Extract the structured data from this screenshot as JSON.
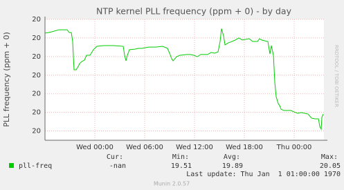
{
  "chart_data": {
    "type": "line",
    "title": "NTP kernel PLL frequency (ppm + 0) - by day",
    "y_label": "PLL frequency (ppm + 0)",
    "side_text": "RRDTOOL / TOBI OETIKER",
    "xlim": [
      0,
      33.58
    ],
    "xticks": [
      {
        "value": 6,
        "label": "Wed 00:00"
      },
      {
        "value": 12,
        "label": "Wed 06:00"
      },
      {
        "value": 18,
        "label": "Wed 12:00"
      },
      {
        "value": 24,
        "label": "Wed 18:00"
      },
      {
        "value": 30,
        "label": "Thu 00:00"
      }
    ],
    "ylim": [
      19.45,
      20.1
    ],
    "yticks": [
      {
        "value": 19.5,
        "label": "20"
      },
      {
        "value": 19.6,
        "label": "20"
      },
      {
        "value": 19.7,
        "label": "20"
      },
      {
        "value": 19.8,
        "label": "20"
      },
      {
        "value": 19.9,
        "label": "20"
      },
      {
        "value": 20.0,
        "label": "20"
      },
      {
        "value": 20.1,
        "label": "20"
      }
    ],
    "grid": true,
    "x": [
      0,
      0.42,
      0.83,
      1.67,
      2.67,
      2.92,
      3.17,
      3.33,
      3.5,
      3.75,
      4,
      4.17,
      4.42,
      4.75,
      5,
      5.42,
      5.83,
      6.25,
      7.08,
      8.33,
      9.42,
      9.58,
      9.75,
      9.92,
      10.17,
      10.83,
      11.25,
      11.67,
      12.5,
      13.33,
      14.17,
      14.75,
      15,
      15.25,
      15.42,
      15.83,
      16.25,
      17.08,
      17.5,
      17.92,
      18.33,
      18.75,
      19.58,
      20,
      20.42,
      20.83,
      21.08,
      21.25,
      21.5,
      21.67,
      22.08,
      22.5,
      22.92,
      23.33,
      23.75,
      24.58,
      25,
      25.58,
      25.83,
      26.08,
      26.42,
      26.83,
      27.08,
      27.25,
      27.5,
      27.67,
      27.83,
      28.08,
      28.25,
      28.42,
      28.75,
      29.17,
      29.58,
      30,
      30.42,
      30.83,
      31.67,
      32.08,
      32.5,
      32.92,
      33.08,
      33.25,
      33.33,
      33.5
    ],
    "series": [
      {
        "name": "pll-freq",
        "color": "#00cc00",
        "values": [
          20.026,
          20.029,
          20.033,
          20.044,
          20.044,
          20.029,
          20.029,
          19.981,
          19.829,
          19.829,
          19.847,
          19.862,
          19.873,
          19.881,
          19.907,
          19.907,
          19.937,
          19.955,
          19.959,
          19.959,
          19.955,
          19.907,
          19.877,
          19.907,
          19.937,
          19.94,
          19.944,
          19.944,
          19.951,
          19.951,
          19.955,
          19.944,
          19.918,
          19.888,
          19.877,
          19.899,
          19.907,
          19.911,
          19.911,
          19.907,
          19.899,
          19.911,
          19.911,
          19.922,
          19.918,
          19.925,
          19.981,
          20.05,
          20.011,
          19.963,
          19.974,
          19.981,
          19.989,
          20.0,
          19.989,
          19.996,
          19.981,
          19.981,
          19.996,
          19.989,
          19.985,
          19.981,
          19.914,
          19.959,
          19.907,
          19.758,
          19.684,
          19.647,
          19.636,
          19.617,
          19.61,
          19.61,
          19.61,
          19.602,
          19.595,
          19.599,
          19.591,
          19.569,
          19.565,
          19.565,
          19.524,
          19.51,
          19.573,
          19.591
        ]
      }
    ],
    "legend_stats": {
      "labels": [
        "Cur:",
        "Min:",
        "Avg:",
        "Max:"
      ],
      "values": [
        "-nan",
        19.51,
        19.89,
        20.05
      ]
    },
    "last_update": "Last update: Thu Jan  1 01:00:00 1970",
    "footer": "Munin 2.0.57"
  }
}
